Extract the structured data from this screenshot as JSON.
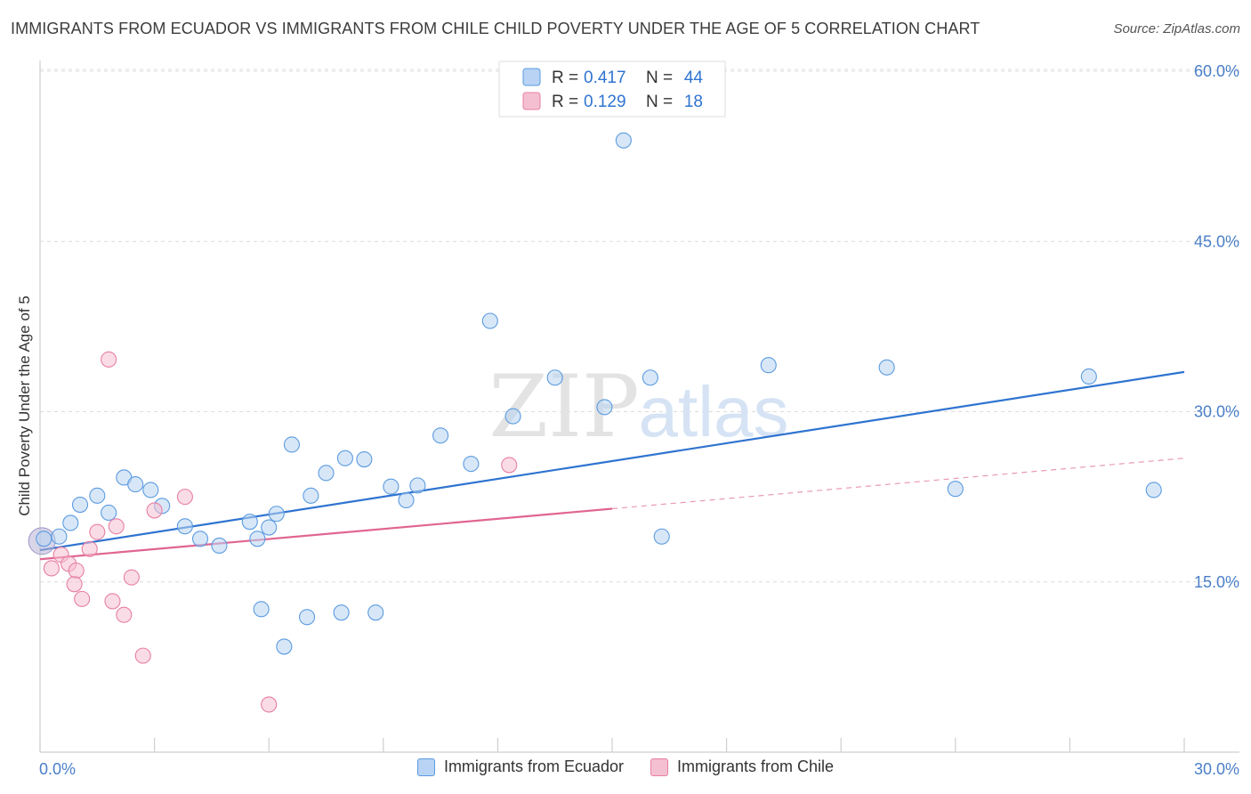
{
  "header": {
    "title": "IMMIGRANTS FROM ECUADOR VS IMMIGRANTS FROM CHILE CHILD POVERTY UNDER THE AGE OF 5 CORRELATION CHART",
    "source": "Source: ZipAtlas.com"
  },
  "watermark": {
    "zip": "ZIP",
    "atlas": "atlas"
  },
  "chart_data": {
    "type": "scatter",
    "ylabel": "Child Poverty Under the Age of 5",
    "xlim": [
      0,
      30
    ],
    "ylim": [
      0,
      60
    ],
    "x_ticks": [
      {
        "value": 0,
        "label": "0.0%"
      },
      {
        "value": 30,
        "label": "30.0%"
      }
    ],
    "y_ticks": [
      {
        "value": 15,
        "label": "15.0%"
      },
      {
        "value": 30,
        "label": "30.0%"
      },
      {
        "value": 45,
        "label": "45.0%"
      },
      {
        "value": 60,
        "label": "60.0%"
      }
    ],
    "grid": "horizontal-dashed",
    "legend_placement": "top-center",
    "series": [
      {
        "name": "Immigrants from Ecuador",
        "color": "#5b9be0",
        "fill": "#b8d3f3",
        "r_label": "R =",
        "r_value": "0.417",
        "n_label": "N =",
        "n_value": "44",
        "trend": {
          "x0": 0,
          "y0": 17.8,
          "x1": 30,
          "y1": 33.5,
          "solid_to": 30
        },
        "points": [
          [
            0.1,
            18.8
          ],
          [
            0.5,
            19.0
          ],
          [
            0.8,
            20.2
          ],
          [
            1.05,
            21.8
          ],
          [
            1.5,
            22.6
          ],
          [
            1.8,
            21.1
          ],
          [
            2.2,
            24.2
          ],
          [
            2.5,
            23.6
          ],
          [
            2.9,
            23.1
          ],
          [
            3.2,
            21.7
          ],
          [
            3.8,
            19.9
          ],
          [
            4.2,
            18.8
          ],
          [
            4.7,
            18.2
          ],
          [
            5.5,
            20.3
          ],
          [
            5.7,
            18.8
          ],
          [
            6.0,
            19.8
          ],
          [
            6.2,
            21.0
          ],
          [
            6.6,
            27.1
          ],
          [
            7.1,
            22.6
          ],
          [
            7.5,
            24.6
          ],
          [
            8.0,
            25.9
          ],
          [
            8.5,
            25.8
          ],
          [
            9.2,
            23.4
          ],
          [
            9.6,
            22.2
          ],
          [
            9.9,
            23.5
          ],
          [
            10.5,
            27.9
          ],
          [
            11.3,
            25.4
          ],
          [
            11.8,
            38.0
          ],
          [
            12.4,
            29.6
          ],
          [
            13.5,
            33.0
          ],
          [
            14.8,
            30.4
          ],
          [
            15.3,
            53.9
          ],
          [
            16.0,
            33.0
          ],
          [
            16.3,
            19.0
          ],
          [
            19.1,
            34.1
          ],
          [
            22.2,
            33.9
          ],
          [
            24.0,
            23.2
          ],
          [
            27.5,
            33.1
          ],
          [
            29.2,
            23.1
          ],
          [
            5.8,
            12.6
          ],
          [
            6.4,
            9.3
          ],
          [
            7.0,
            11.9
          ],
          [
            7.9,
            12.3
          ],
          [
            8.8,
            12.3
          ]
        ]
      },
      {
        "name": "Immigrants from Chile",
        "color": "#e77fa3",
        "fill": "#f5bfd2",
        "r_label": "R =",
        "r_value": "0.129",
        "n_label": "N =",
        "n_value": "18",
        "trend": {
          "x0": 0,
          "y0": 17.0,
          "x1": 30,
          "y1": 25.9,
          "solid_to": 15.0
        },
        "points": [
          [
            0.3,
            16.2
          ],
          [
            0.55,
            17.4
          ],
          [
            0.75,
            16.6
          ],
          [
            0.95,
            16.0
          ],
          [
            1.1,
            13.5
          ],
          [
            1.3,
            17.9
          ],
          [
            1.5,
            19.4
          ],
          [
            1.8,
            34.6
          ],
          [
            1.9,
            13.3
          ],
          [
            2.0,
            19.9
          ],
          [
            2.4,
            15.4
          ],
          [
            2.7,
            8.5
          ],
          [
            3.0,
            21.3
          ],
          [
            3.8,
            22.5
          ],
          [
            6.0,
            4.2
          ],
          [
            12.3,
            25.3
          ],
          [
            0.9,
            14.8
          ],
          [
            2.2,
            12.1
          ]
        ]
      }
    ]
  }
}
